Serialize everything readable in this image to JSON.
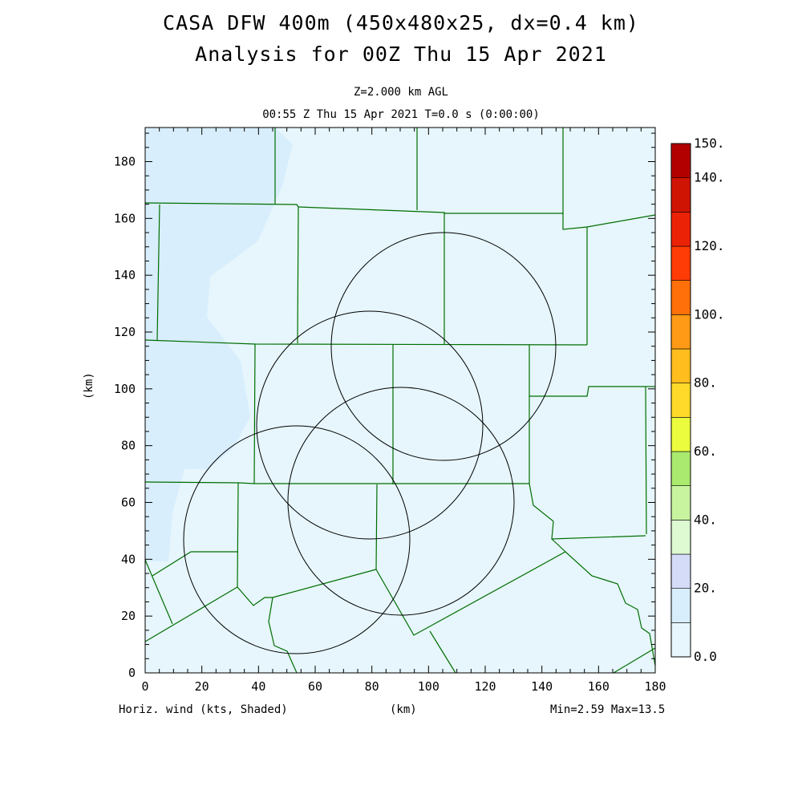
{
  "header": {
    "title_line1": "CASA DFW 400m (450x480x25, dx=0.4 km)",
    "title_line2": "Analysis for 00Z Thu 15 Apr 2021",
    "level": "Z=2.000 km AGL",
    "time": "00:55 Z Thu 15 Apr 2021   T=0.0 s (0:00:00)"
  },
  "plot": {
    "x_axis": {
      "label": "(km)",
      "min": 0,
      "max": 180,
      "ticks": [
        "0",
        "20",
        "40",
        "60",
        "80",
        "100",
        "120",
        "140",
        "160",
        "180"
      ]
    },
    "y_axis": {
      "label": "(km)",
      "min": 0,
      "max": 192,
      "ticks": [
        "0",
        "20",
        "40",
        "60",
        "80",
        "100",
        "120",
        "140",
        "160",
        "180"
      ]
    },
    "field_label": "Horiz. wind (kts, Shaded)",
    "minmax": "Min=2.59 Max=13.5",
    "radar_range_rings": [
      {
        "center_km": [
          107,
          116
        ],
        "radius_km": 39
      },
      {
        "center_km": [
          80,
          87
        ],
        "radius_km": 40
      },
      {
        "center_km": [
          90,
          61
        ],
        "radius_km": 40
      },
      {
        "center_km": [
          54,
          47
        ],
        "radius_km": 40
      }
    ]
  },
  "colorbar": {
    "labels": [
      "0.0",
      "20.",
      "40.",
      "60.",
      "80.",
      "100.",
      "120.",
      "140.",
      "150."
    ],
    "colors": [
      "#e6f6fc",
      "#d8eefc",
      "#d4dcf8",
      "#ddfad2",
      "#c8f4a0",
      "#aaea6e",
      "#ebfc3e",
      "#ffda2a",
      "#ffbd1e",
      "#ff9a16",
      "#ff700a",
      "#ff3c06",
      "#ec2206",
      "#d01404",
      "#b20000"
    ]
  },
  "colors": {
    "background_field": "#e6f6fc",
    "higher_wind_field": "#d8eefc",
    "county_lines": "#006d00",
    "range_rings": "#000000"
  }
}
